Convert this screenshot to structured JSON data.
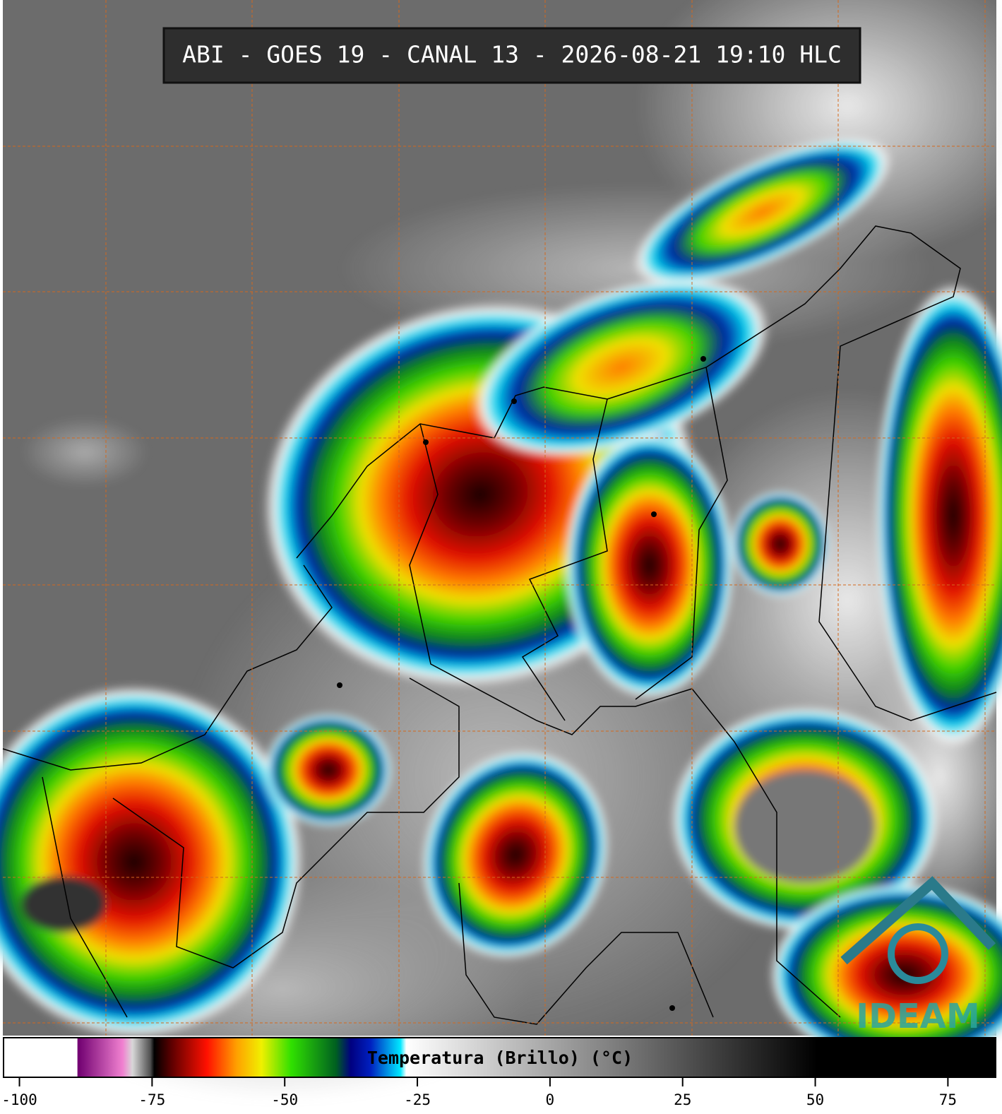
{
  "header": {
    "title": "ABI - GOES 19 - CANAL 13 - 2026-08-21 19:10 HLC"
  },
  "logo": {
    "text": "IDEAM"
  },
  "colorbar": {
    "label": "Temperatura (Brillo) (°C)",
    "lim": [
      -103,
      84
    ],
    "ticks": [
      -100,
      -75,
      -50,
      -25,
      0,
      25,
      50,
      75
    ]
  }
}
